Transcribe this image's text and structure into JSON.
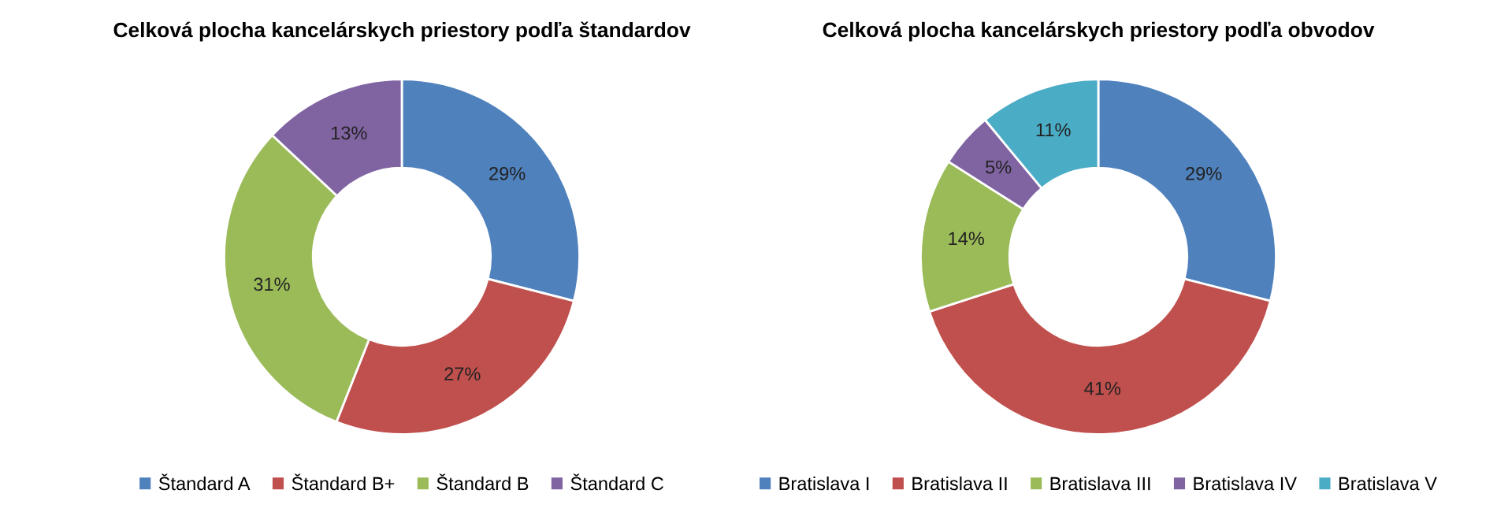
{
  "chart_data": [
    {
      "type": "donut",
      "title": "Celková plocha kancelárskych priestory podľa štandardov",
      "categories": [
        "Štandard A",
        "Štandard B+",
        "Štandard B",
        "Štandard C"
      ],
      "values": [
        29,
        27,
        31,
        13
      ],
      "value_labels": [
        "29%",
        "27%",
        "31%",
        "13%"
      ],
      "colors": [
        "#4f81bd",
        "#c0504d",
        "#9bbb59",
        "#8064a2"
      ],
      "legend": "bottom"
    },
    {
      "type": "donut",
      "title": "Celková plocha kancelárskych priestory podľa obvodov",
      "categories": [
        "Bratislava I",
        "Bratislava II",
        "Bratislava III",
        "Bratislava IV",
        "Bratislava V"
      ],
      "values": [
        29,
        41,
        14,
        5,
        11
      ],
      "value_labels": [
        "29%",
        "41%",
        "14%",
        "5%",
        "11%"
      ],
      "colors": [
        "#4f81bd",
        "#c0504d",
        "#9bbb59",
        "#8064a2",
        "#4bacc6"
      ],
      "legend": "bottom"
    }
  ]
}
